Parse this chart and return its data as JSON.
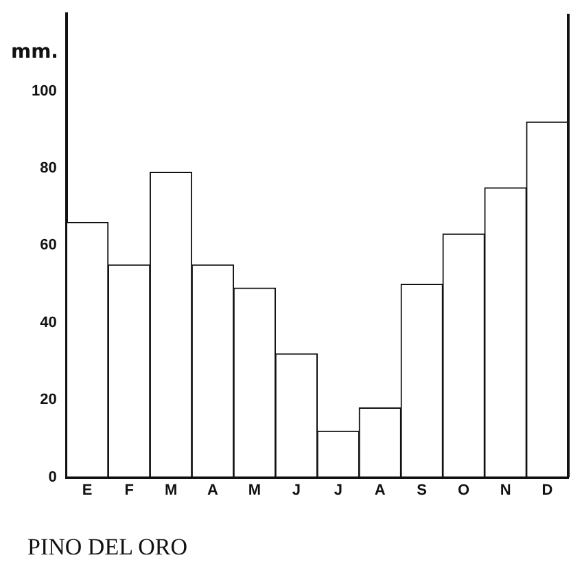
{
  "chart_data": {
    "type": "bar",
    "title": "PINO DEL ORO",
    "ylabel": "mm.",
    "categories": [
      "E",
      "F",
      "M",
      "A",
      "M",
      "J",
      "J",
      "A",
      "S",
      "O",
      "N",
      "D"
    ],
    "values": [
      66,
      55,
      79,
      55,
      49,
      32,
      12,
      18,
      50,
      63,
      75,
      92
    ],
    "color": "#ffffff",
    "ylim": [
      0,
      120
    ],
    "yticks": [
      0,
      20,
      40,
      60,
      80,
      100
    ],
    "grid": false,
    "legend": false
  }
}
